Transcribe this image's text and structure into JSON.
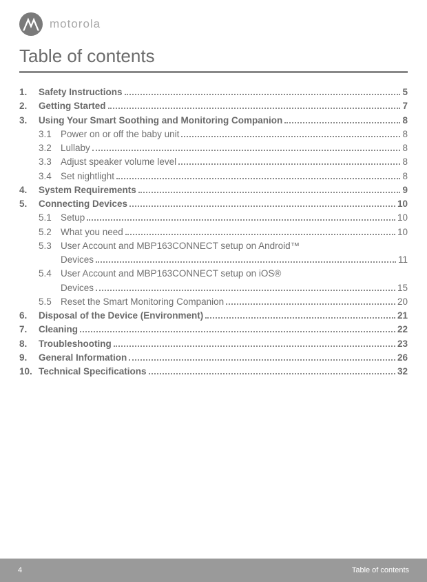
{
  "brand": {
    "name": "motorola",
    "logo_bg": "#7a7a7a",
    "logo_fg": "#ffffff"
  },
  "title": "Table of contents",
  "toc": [
    {
      "n": "1.",
      "label": "Safety Instructions ",
      "page": "5",
      "bold": true,
      "sub": []
    },
    {
      "n": "2.",
      "label": "Getting Started ",
      "page": "7",
      "bold": true,
      "sub": []
    },
    {
      "n": "3.",
      "label": "Using Your Smart Soothing and Monitoring Companion ",
      "page": "8",
      "bold": true,
      "sub": [
        {
          "sn": "3.1",
          "label": "Power on or off the baby unit",
          "page": " 8"
        },
        {
          "sn": "3.2",
          "label": "Lullaby ",
          "page": " 8"
        },
        {
          "sn": "3.3",
          "label": "Adjust speaker volume level",
          "page": " 8"
        },
        {
          "sn": "3.4",
          "label": "Set nightlight ",
          "page": " 8"
        }
      ]
    },
    {
      "n": "4.",
      "label": "System Requirements ",
      "page": "9",
      "bold": true,
      "sub": []
    },
    {
      "n": "5.",
      "label": "Connecting Devices ",
      "page": "10",
      "bold": true,
      "sub": [
        {
          "sn": "5.1",
          "label": "Setup",
          "page": " 10"
        },
        {
          "sn": "5.2",
          "label": "What you need",
          "page": " 10"
        },
        {
          "sn": "5.3",
          "label": "User Account and MBP163CONNECT setup on Android™",
          "cont_label": "Devices ",
          "page": "11"
        },
        {
          "sn": "5.4",
          "label": "User Account and MBP163CONNECT setup on iOS®",
          "cont_label": "Devices ",
          "page": "15"
        },
        {
          "sn": "5.5",
          "label": "Reset the Smart Monitoring Companion ",
          "page": " 20"
        }
      ]
    },
    {
      "n": "6.",
      "label": "Disposal of the Device (Environment) ",
      "page": " 21",
      "bold": true,
      "sub": []
    },
    {
      "n": "7.",
      "label": "Cleaning ",
      "page": " 22",
      "bold": true,
      "sub": []
    },
    {
      "n": "8.",
      "label": "Troubleshooting ",
      "page": " 23",
      "bold": true,
      "sub": []
    },
    {
      "n": "9.",
      "label": "General Information",
      "page": " 26",
      "bold": true,
      "sub": []
    },
    {
      "n": "10.",
      "label": "Technical Specifications ",
      "page": " 32",
      "bold": true,
      "sub": []
    }
  ],
  "footer": {
    "page_number": "4",
    "section": "Table of contents"
  },
  "colors": {
    "text": "#6f6f6f",
    "rule": "#888888",
    "footer_bg": "#9a9a9a",
    "footer_fg": "#ffffff"
  }
}
